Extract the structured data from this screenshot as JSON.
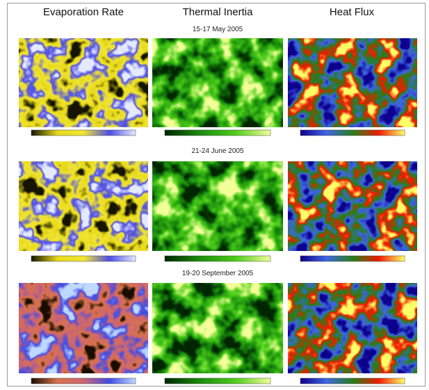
{
  "headers": [
    "Evaporation Rate",
    "Thermal Inertia",
    "Heat Flux"
  ],
  "rows": [
    {
      "date": "15-17 May 2005"
    },
    {
      "date": "21-24 June 2005"
    },
    {
      "date": "19-20 September 2005"
    }
  ]
}
